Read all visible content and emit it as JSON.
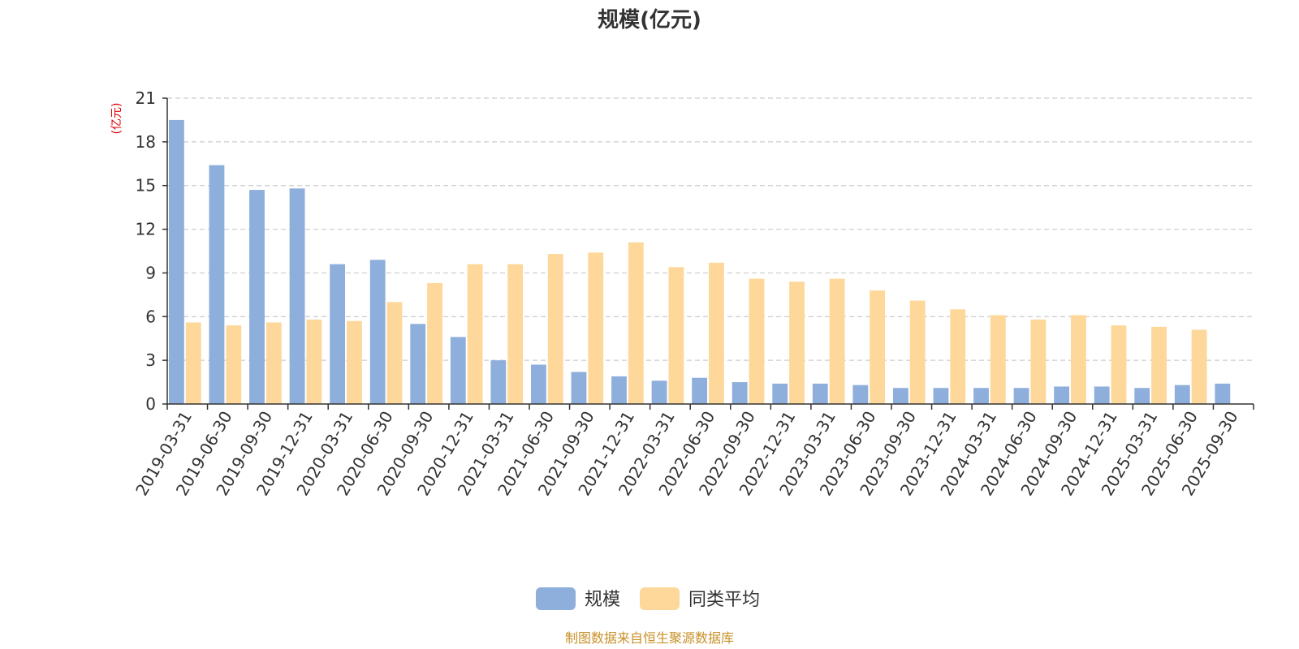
{
  "chart_data": {
    "type": "bar",
    "title": "规模(亿元)",
    "ylabel": "(亿元)",
    "xlabel": "",
    "ylim": [
      0,
      21
    ],
    "yticks": [
      0,
      3,
      6,
      9,
      12,
      15,
      18,
      21
    ],
    "grid": true,
    "legend_position": "bottom-center",
    "categories": [
      "2019-03-31",
      "2019-06-30",
      "2019-09-30",
      "2019-12-31",
      "2020-03-31",
      "2020-06-30",
      "2020-09-30",
      "2020-12-31",
      "2021-03-31",
      "2021-06-30",
      "2021-09-30",
      "2021-12-31",
      "2022-03-31",
      "2022-06-30",
      "2022-09-30",
      "2022-12-31",
      "2023-03-31",
      "2023-06-30",
      "2023-09-30",
      "2023-12-31",
      "2024-03-31",
      "2024-06-30",
      "2024-09-30",
      "2024-12-31",
      "2025-03-31",
      "2025-06-30",
      "2025-09-30"
    ],
    "series": [
      {
        "name": "规模",
        "color": "#8EAEDC",
        "values": [
          19.5,
          16.4,
          14.7,
          14.8,
          9.6,
          9.9,
          5.5,
          4.6,
          3.0,
          2.7,
          2.2,
          1.9,
          1.6,
          1.8,
          1.5,
          1.4,
          1.4,
          1.3,
          1.1,
          1.1,
          1.1,
          1.1,
          1.2,
          1.2,
          1.1,
          1.3,
          1.4
        ]
      },
      {
        "name": "同类平均",
        "color": "#FDD89A",
        "values": [
          5.6,
          5.4,
          5.6,
          5.8,
          5.7,
          7.0,
          8.3,
          9.6,
          9.6,
          10.3,
          10.4,
          11.1,
          9.4,
          9.7,
          8.6,
          8.4,
          8.6,
          7.8,
          7.1,
          6.5,
          6.1,
          5.8,
          6.1,
          5.4,
          5.3,
          5.1,
          null
        ]
      }
    ]
  },
  "colors": {
    "axis": "#333333",
    "grid": "#cccccc",
    "unit_label": "#e00000",
    "source_text": "#c8912a"
  },
  "source": "制图数据来自恒生聚源数据库"
}
